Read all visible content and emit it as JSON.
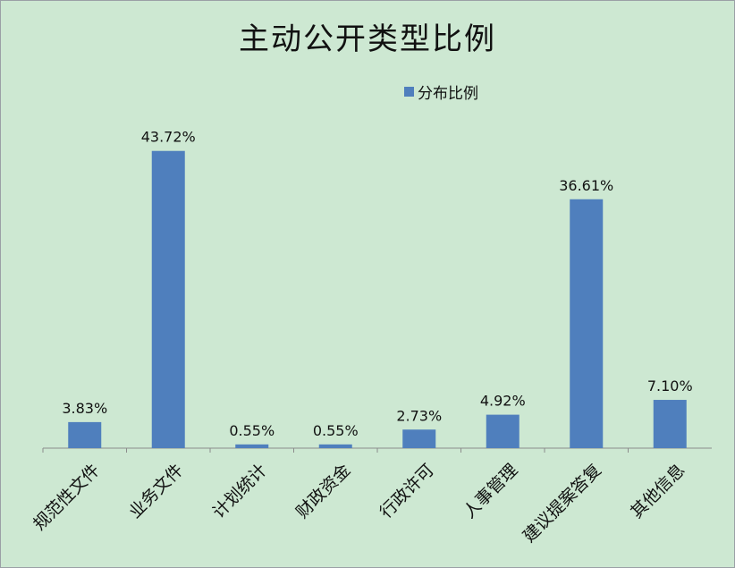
{
  "chart_data": {
    "type": "bar",
    "title": "主动公开类型比例",
    "legend": {
      "position": "top-right",
      "entries": [
        "分布比例"
      ]
    },
    "categories": [
      "规范性文件",
      "业务文件",
      "计划统计",
      "财政资金",
      "行政许可",
      "人事管理",
      "建议提案答复",
      "其他信息"
    ],
    "series": [
      {
        "name": "分布比例",
        "values": [
          3.83,
          43.72,
          0.55,
          0.55,
          2.73,
          4.92,
          36.61,
          7.1
        ]
      }
    ],
    "data_labels": [
      "3.83%",
      "43.72%",
      "0.55%",
      "0.55%",
      "2.73%",
      "4.92%",
      "36.61%",
      "7.10%"
    ],
    "ylim": [
      0,
      50
    ],
    "grid": false,
    "colors": {
      "bar": "#4f7fbd",
      "background": "#cde8d2",
      "axis": "#8c8c8c"
    }
  }
}
